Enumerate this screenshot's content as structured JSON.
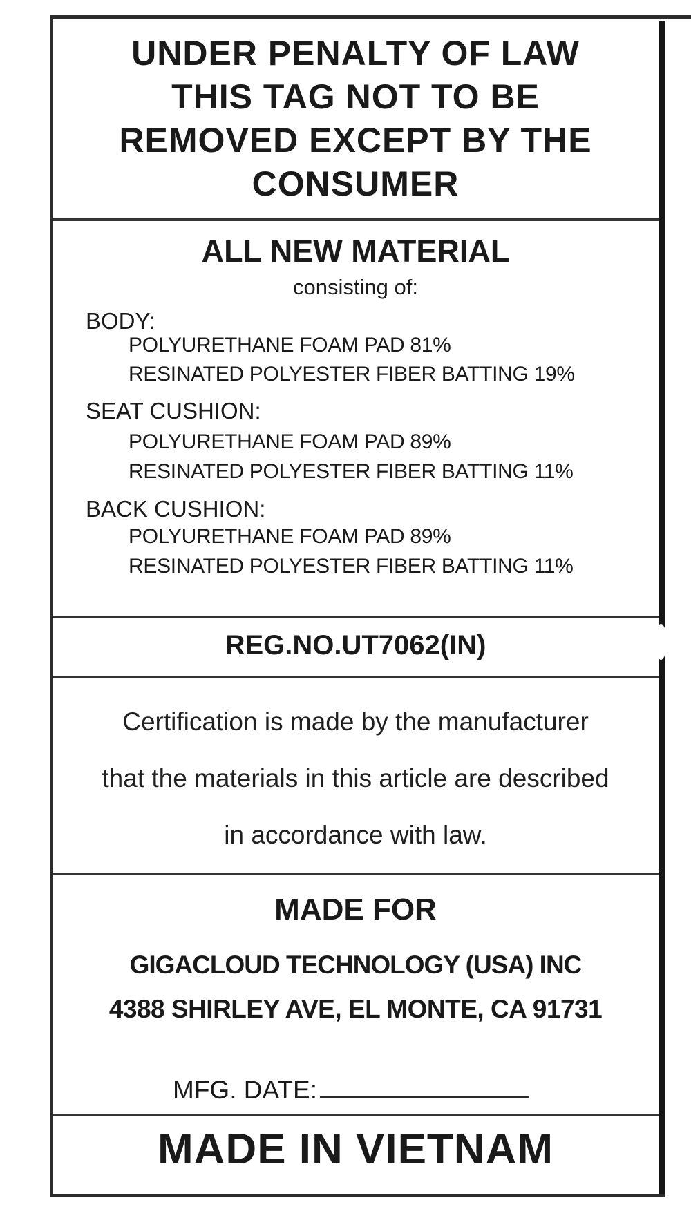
{
  "label": {
    "header": {
      "lines": [
        "UNDER PENALTY OF LAW",
        "THIS TAG NOT TO BE",
        "REMOVED EXCEPT BY THE",
        "CONSUMER"
      ]
    },
    "materials": {
      "title": "ALL NEW MATERIAL",
      "subtitle": "consisting of:",
      "groups": [
        {
          "name": "BODY:",
          "components": [
            "POLYURETHANE FOAM PAD 81%",
            "RESINATED POLYESTER FIBER BATTING 19%"
          ]
        },
        {
          "name": "SEAT CUSHION:",
          "components": [
            "POLYURETHANE FOAM PAD 89%",
            "RESINATED POLYESTER FIBER BATTING 11%"
          ]
        },
        {
          "name": "BACK CUSHION:",
          "components": [
            "POLYURETHANE FOAM PAD 89%",
            "RESINATED POLYESTER FIBER BATTING 11%"
          ]
        }
      ]
    },
    "registration": {
      "reg_no": "REG.NO.UT7062(IN)"
    },
    "certification": {
      "lines": [
        "Certification is made by the manufacturer",
        "that the materials in this article are described",
        "in accordance with law."
      ]
    },
    "made_for": {
      "heading": "MADE FOR",
      "company": "GIGACLOUD TECHNOLOGY (USA) INC",
      "address": "4388 SHIRLEY AVE, EL MONTE, CA 91731",
      "mfg_date_label": "MFG. DATE:",
      "mfg_date_value": ""
    },
    "origin": {
      "text": "MADE IN VIETNAM"
    },
    "colors": {
      "ink": "#1a1a1a",
      "frame_line": "#2c2c2c",
      "right_edge": "#161616",
      "background": "#ffffff"
    }
  }
}
